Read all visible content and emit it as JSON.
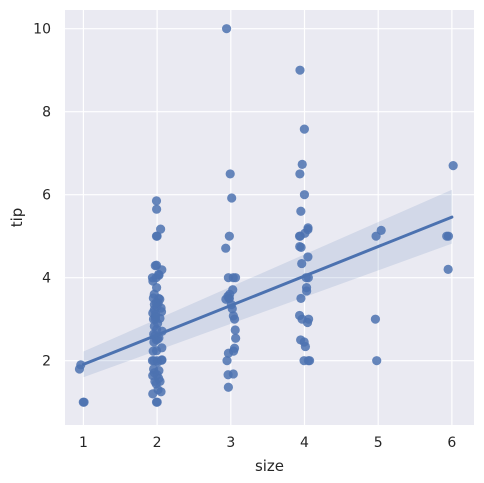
{
  "chart_data": {
    "type": "scatter",
    "title": "",
    "xlabel": "size",
    "ylabel": "tip",
    "xlim": [
      0.75,
      6.3
    ],
    "ylim": [
      0.45,
      10.45
    ],
    "x_ticks": [
      1,
      2,
      3,
      4,
      5,
      6
    ],
    "y_ticks": [
      2,
      4,
      6,
      8,
      10
    ],
    "grid": true,
    "background": "#EAEAF2",
    "grid_color": "#FFFFFF",
    "point_color": "#4C72B0",
    "regression": {
      "x": [
        1,
        6.0
      ],
      "y": [
        1.91,
        5.46
      ],
      "ci_lower": [
        1.6,
        4.82
      ],
      "ci_upper": [
        2.22,
        6.12
      ],
      "color": "#4C72B0"
    },
    "points": [
      {
        "x": 1,
        "y": 1.0
      },
      {
        "x": 1,
        "y": 1.0
      },
      {
        "x": 1,
        "y": 1.8
      },
      {
        "x": 1,
        "y": 1.9
      },
      {
        "x": 2,
        "y": 1.0
      },
      {
        "x": 2,
        "y": 1.0
      },
      {
        "x": 2,
        "y": 1.2
      },
      {
        "x": 2,
        "y": 1.25
      },
      {
        "x": 2,
        "y": 1.3
      },
      {
        "x": 2,
        "y": 1.44
      },
      {
        "x": 2,
        "y": 1.5
      },
      {
        "x": 2,
        "y": 1.5
      },
      {
        "x": 2,
        "y": 1.57
      },
      {
        "x": 2,
        "y": 1.64
      },
      {
        "x": 2,
        "y": 1.66
      },
      {
        "x": 2,
        "y": 1.71
      },
      {
        "x": 2,
        "y": 1.76
      },
      {
        "x": 2,
        "y": 1.8
      },
      {
        "x": 2,
        "y": 1.97
      },
      {
        "x": 2,
        "y": 2.0
      },
      {
        "x": 2,
        "y": 2.0
      },
      {
        "x": 2,
        "y": 2.0
      },
      {
        "x": 2,
        "y": 2.01
      },
      {
        "x": 2,
        "y": 2.02
      },
      {
        "x": 2,
        "y": 2.23
      },
      {
        "x": 2,
        "y": 2.24
      },
      {
        "x": 2,
        "y": 2.31
      },
      {
        "x": 2,
        "y": 2.45
      },
      {
        "x": 2,
        "y": 2.5
      },
      {
        "x": 2,
        "y": 2.52
      },
      {
        "x": 2,
        "y": 2.55
      },
      {
        "x": 2,
        "y": 2.6
      },
      {
        "x": 2,
        "y": 2.64
      },
      {
        "x": 2,
        "y": 2.71
      },
      {
        "x": 2,
        "y": 2.75
      },
      {
        "x": 2,
        "y": 2.83
      },
      {
        "x": 2,
        "y": 2.9
      },
      {
        "x": 2,
        "y": 3.0
      },
      {
        "x": 2,
        "y": 3.0
      },
      {
        "x": 2,
        "y": 3.02
      },
      {
        "x": 2,
        "y": 3.06
      },
      {
        "x": 2,
        "y": 3.12
      },
      {
        "x": 2,
        "y": 3.15
      },
      {
        "x": 2,
        "y": 3.18
      },
      {
        "x": 2,
        "y": 3.23
      },
      {
        "x": 2,
        "y": 3.27
      },
      {
        "x": 2,
        "y": 3.31
      },
      {
        "x": 2,
        "y": 3.35
      },
      {
        "x": 2,
        "y": 3.39
      },
      {
        "x": 2,
        "y": 3.4
      },
      {
        "x": 2,
        "y": 3.48
      },
      {
        "x": 2,
        "y": 3.5
      },
      {
        "x": 2,
        "y": 3.51
      },
      {
        "x": 2,
        "y": 3.6
      },
      {
        "x": 2,
        "y": 3.76
      },
      {
        "x": 2,
        "y": 3.92
      },
      {
        "x": 2,
        "y": 4.0
      },
      {
        "x": 2,
        "y": 4.0
      },
      {
        "x": 2,
        "y": 4.06
      },
      {
        "x": 2,
        "y": 4.08
      },
      {
        "x": 2,
        "y": 4.19
      },
      {
        "x": 2,
        "y": 4.29
      },
      {
        "x": 2,
        "y": 4.3
      },
      {
        "x": 2,
        "y": 5.0
      },
      {
        "x": 2,
        "y": 5.0
      },
      {
        "x": 2,
        "y": 5.17
      },
      {
        "x": 2,
        "y": 5.65
      },
      {
        "x": 2,
        "y": 5.85
      },
      {
        "x": 3,
        "y": 1.36
      },
      {
        "x": 3,
        "y": 1.66
      },
      {
        "x": 3,
        "y": 1.68
      },
      {
        "x": 3,
        "y": 2.0
      },
      {
        "x": 3,
        "y": 2.18
      },
      {
        "x": 3,
        "y": 2.23
      },
      {
        "x": 3,
        "y": 2.3
      },
      {
        "x": 3,
        "y": 2.54
      },
      {
        "x": 3,
        "y": 2.74
      },
      {
        "x": 3,
        "y": 3.0
      },
      {
        "x": 3,
        "y": 3.08
      },
      {
        "x": 3,
        "y": 3.25
      },
      {
        "x": 3,
        "y": 3.35
      },
      {
        "x": 3,
        "y": 3.48
      },
      {
        "x": 3,
        "y": 3.5
      },
      {
        "x": 3,
        "y": 3.5
      },
      {
        "x": 3,
        "y": 3.55
      },
      {
        "x": 3,
        "y": 3.6
      },
      {
        "x": 3,
        "y": 3.71
      },
      {
        "x": 3,
        "y": 4.0
      },
      {
        "x": 3,
        "y": 4.0
      },
      {
        "x": 3,
        "y": 4.0
      },
      {
        "x": 3,
        "y": 4.71
      },
      {
        "x": 3,
        "y": 5.0
      },
      {
        "x": 3,
        "y": 5.92
      },
      {
        "x": 3,
        "y": 6.5
      },
      {
        "x": 3,
        "y": 10.0
      },
      {
        "x": 4,
        "y": 2.0
      },
      {
        "x": 4,
        "y": 2.0
      },
      {
        "x": 4,
        "y": 2.0
      },
      {
        "x": 4,
        "y": 2.34
      },
      {
        "x": 4,
        "y": 2.45
      },
      {
        "x": 4,
        "y": 2.5
      },
      {
        "x": 4,
        "y": 2.92
      },
      {
        "x": 4,
        "y": 3.0
      },
      {
        "x": 4,
        "y": 3.0
      },
      {
        "x": 4,
        "y": 3.09
      },
      {
        "x": 4,
        "y": 3.5
      },
      {
        "x": 4,
        "y": 3.68
      },
      {
        "x": 4,
        "y": 3.76
      },
      {
        "x": 4,
        "y": 4.0
      },
      {
        "x": 4,
        "y": 4.0
      },
      {
        "x": 4,
        "y": 4.34
      },
      {
        "x": 4,
        "y": 4.5
      },
      {
        "x": 4,
        "y": 4.73
      },
      {
        "x": 4,
        "y": 4.75
      },
      {
        "x": 4,
        "y": 5.0
      },
      {
        "x": 4,
        "y": 5.0
      },
      {
        "x": 4,
        "y": 5.07
      },
      {
        "x": 4,
        "y": 5.16
      },
      {
        "x": 4,
        "y": 5.2
      },
      {
        "x": 4,
        "y": 5.6
      },
      {
        "x": 4,
        "y": 6.0
      },
      {
        "x": 4,
        "y": 6.5
      },
      {
        "x": 4,
        "y": 6.73
      },
      {
        "x": 4,
        "y": 7.58
      },
      {
        "x": 4,
        "y": 9.0
      },
      {
        "x": 5,
        "y": 2.0
      },
      {
        "x": 5,
        "y": 3.0
      },
      {
        "x": 5,
        "y": 5.0
      },
      {
        "x": 5,
        "y": 5.14
      },
      {
        "x": 6,
        "y": 4.2
      },
      {
        "x": 6,
        "y": 5.0
      },
      {
        "x": 6,
        "y": 5.0
      },
      {
        "x": 6,
        "y": 6.7
      }
    ]
  }
}
